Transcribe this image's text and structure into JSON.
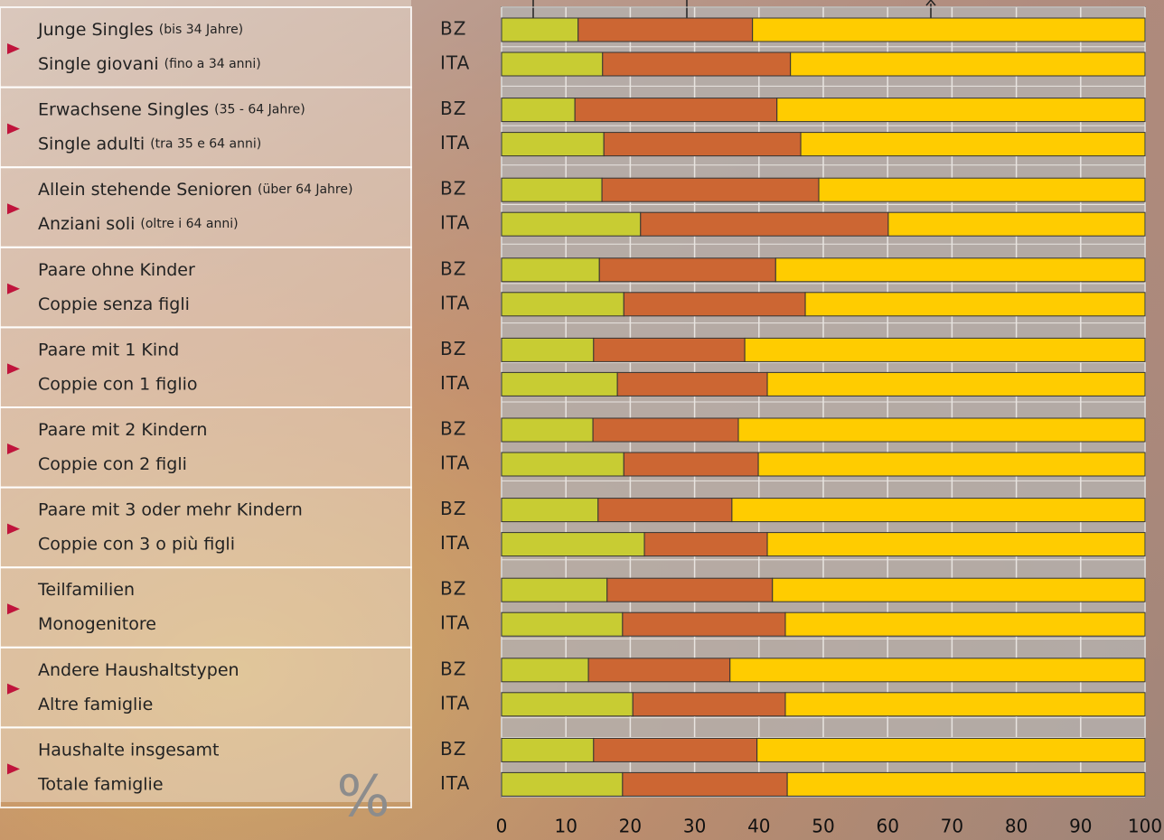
{
  "chart_data": {
    "type": "bar",
    "orientation": "horizontal",
    "stacked": true,
    "unit_symbol": "%",
    "groups": [
      {
        "de": "Junge Singles",
        "de_note": "(bis 34 Jahre)",
        "it": "Single giovani",
        "it_note": "(fino a 34 anni)"
      },
      {
        "de": "Erwachsene Singles",
        "de_note": "(35 - 64 Jahre)",
        "it": "Single adulti",
        "it_note": "(tra 35 e 64 anni)"
      },
      {
        "de": "Allein stehende Senioren",
        "de_note": "(über 64 Jahre)",
        "it": "Anziani soli",
        "it_note": "(oltre i 64 anni)"
      },
      {
        "de": "Paare ohne Kinder",
        "it": "Coppie senza figli"
      },
      {
        "de": "Paare mit 1 Kind",
        "it": "Coppie con 1 figlio"
      },
      {
        "de": "Paare mit 2 Kindern",
        "it": "Coppie con 2 figli"
      },
      {
        "de": "Paare mit 3 oder mehr Kindern",
        "it": "Coppie con 3 o più figli"
      },
      {
        "de": "Teilfamilien",
        "it": "Monogenitore"
      },
      {
        "de": "Andere Haushaltstypen",
        "it": "Altre famiglie"
      },
      {
        "de": "Haushalte insgesamt",
        "it": "Totale famiglie"
      }
    ],
    "categories": [
      "BZ",
      "ITA",
      "BZ",
      "ITA",
      "BZ",
      "ITA",
      "BZ",
      "ITA",
      "BZ",
      "ITA",
      "BZ",
      "ITA",
      "BZ",
      "ITA",
      "BZ",
      "ITA",
      "BZ",
      "ITA",
      "BZ",
      "ITA"
    ],
    "series": [
      {
        "color": "#c8cc33",
        "values": [
          11.9,
          15.7,
          11.4,
          15.9,
          15.6,
          21.6,
          15.2,
          19.0,
          14.3,
          18.0,
          14.2,
          19.0,
          15.0,
          22.2,
          16.4,
          18.8,
          13.5,
          20.4,
          14.3,
          18.8
        ]
      },
      {
        "color": "#cc6633",
        "values": [
          27.1,
          29.2,
          31.4,
          30.6,
          33.7,
          38.5,
          27.4,
          28.2,
          23.5,
          23.3,
          22.6,
          20.9,
          20.8,
          19.1,
          25.7,
          25.3,
          22.0,
          23.7,
          25.4,
          25.6
        ]
      },
      {
        "color": "#ffcc00",
        "values": [
          61.0,
          55.1,
          57.2,
          53.5,
          50.7,
          39.9,
          57.4,
          52.8,
          62.2,
          58.7,
          63.2,
          60.1,
          64.2,
          58.7,
          57.9,
          55.9,
          64.5,
          55.9,
          60.3,
          55.6
        ]
      }
    ],
    "xlim": [
      0,
      100
    ],
    "xticks": [
      0,
      10,
      20,
      30,
      40,
      50,
      60,
      70,
      80,
      90,
      100
    ],
    "grid": true
  }
}
